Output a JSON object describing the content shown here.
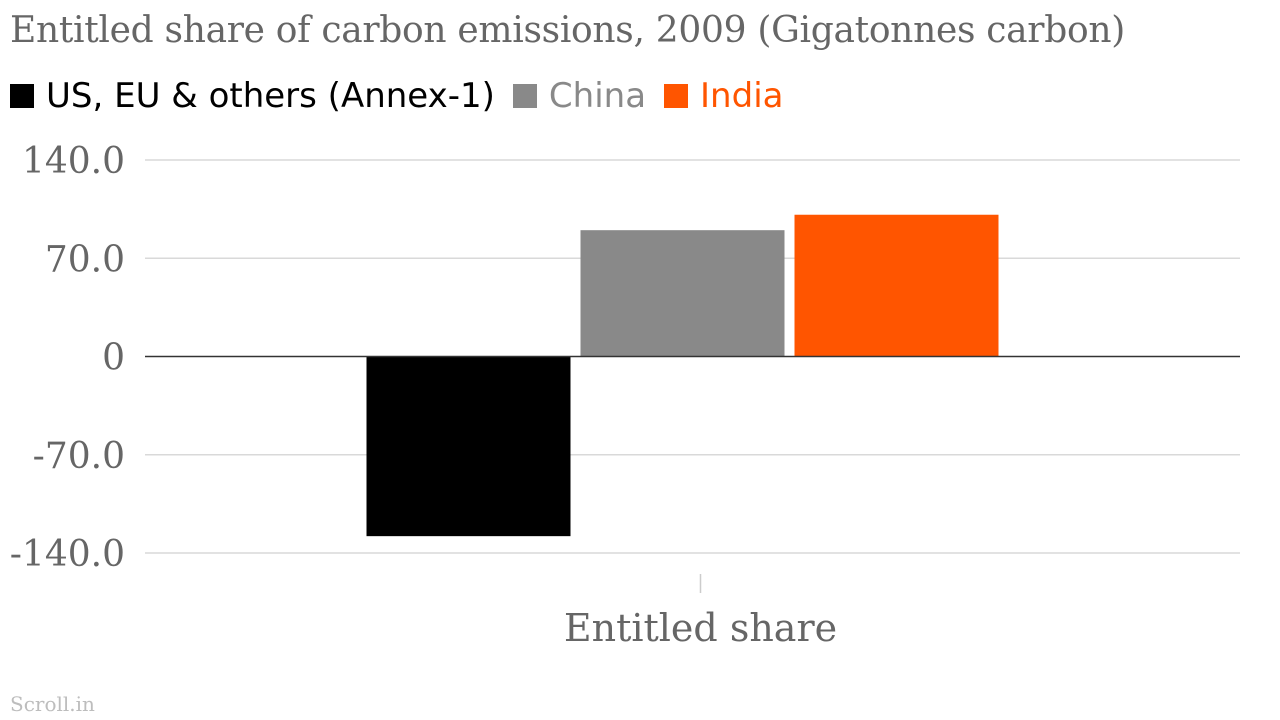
{
  "chart_data": {
    "type": "bar",
    "title": "Entitled share of carbon emissions, 2009 (Gigatonnes carbon)",
    "categories": [
      "Entitled share"
    ],
    "series": [
      {
        "name": "US, EU & others (Annex-1)",
        "values": [
          -128
        ],
        "color": "#000000"
      },
      {
        "name": "China",
        "values": [
          90
        ],
        "color": "#898989"
      },
      {
        "name": "India",
        "values": [
          101
        ],
        "color": "#ff5500"
      }
    ],
    "yticks": [
      "140.0",
      "70.0",
      "0",
      "-70.0",
      "-140.0"
    ],
    "ylim": [
      -140,
      140
    ],
    "grid": true,
    "legend_position": "top-left"
  },
  "footer": "Scroll.in"
}
